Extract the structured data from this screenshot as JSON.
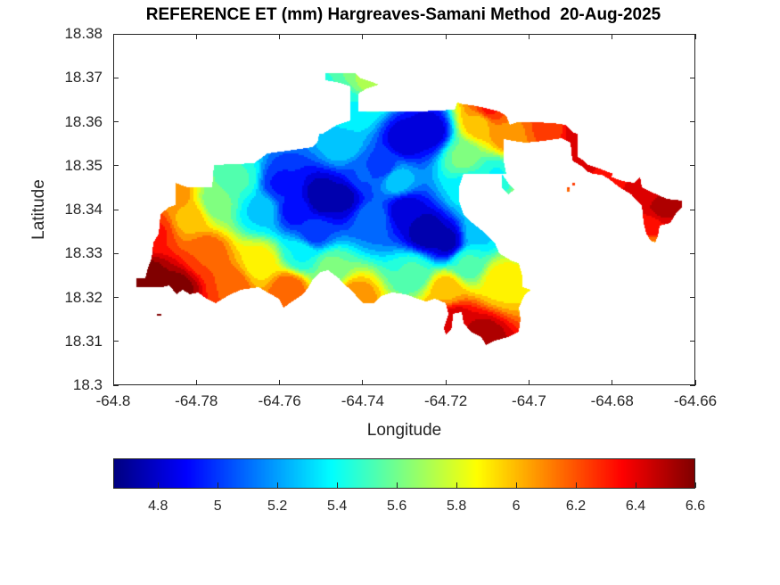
{
  "chart_data": {
    "type": "heatmap",
    "title": "REFERENCE ET (mm) Hargreaves-Samani Method  20-Aug-2025",
    "xlabel": "Longitude",
    "ylabel": "Latitude",
    "xlim": [
      -64.8,
      -64.66
    ],
    "ylim": [
      18.3,
      18.38
    ],
    "xticks": [
      -64.8,
      -64.78,
      -64.76,
      -64.74,
      -64.72,
      -64.7,
      -64.68,
      -64.66
    ],
    "xtick_labels": [
      "-64.8",
      "-64.78",
      "-64.76",
      "-64.74",
      "-64.72",
      "-64.7",
      "-64.68",
      "-64.66"
    ],
    "yticks": [
      18.3,
      18.31,
      18.32,
      18.33,
      18.34,
      18.35,
      18.36,
      18.37,
      18.38
    ],
    "ytick_labels": [
      "18.3",
      "18.31",
      "18.32",
      "18.33",
      "18.34",
      "18.35",
      "18.36",
      "18.37",
      "18.38"
    ],
    "colormap": "jet",
    "colorbar": {
      "orientation": "horizontal",
      "location": "below",
      "clim": [
        4.65,
        6.6
      ],
      "ticks": [
        4.8,
        5.0,
        5.2,
        5.4,
        5.6,
        5.8,
        6.0,
        6.2,
        6.4,
        6.6
      ],
      "tick_labels": [
        "4.8",
        "5",
        "5.2",
        "5.4",
        "5.6",
        "5.8",
        "6",
        "6.2",
        "6.4",
        "6.6"
      ]
    },
    "grid": false,
    "value_summary": {
      "min_approx": 4.7,
      "max_approx": 6.6,
      "low_zones": [
        {
          "lon": -64.749,
          "lat": 18.342,
          "value": 4.7
        },
        {
          "lon": -64.725,
          "lat": 18.335,
          "value": 4.7
        },
        {
          "lon": -64.726,
          "lat": 18.357,
          "value": 4.8
        }
      ],
      "high_zones": [
        {
          "lon": -64.788,
          "lat": 18.325,
          "value": 6.6
        },
        {
          "lon": -64.718,
          "lat": 18.313,
          "value": 6.5
        },
        {
          "lon": -64.67,
          "lat": 18.34,
          "value": 6.5
        },
        {
          "lon": -64.688,
          "lat": 18.359,
          "value": 6.5
        }
      ]
    },
    "field_points": [
      {
        "lon": -64.792,
        "lat": 18.325,
        "v": 6.6
      },
      {
        "lon": -64.785,
        "lat": 18.322,
        "v": 6.6
      },
      {
        "lon": -64.79,
        "lat": 18.335,
        "v": 6.3
      },
      {
        "lon": -64.782,
        "lat": 18.338,
        "v": 6.0
      },
      {
        "lon": -64.786,
        "lat": 18.344,
        "v": 6.1
      },
      {
        "lon": -64.778,
        "lat": 18.33,
        "v": 6.2
      },
      {
        "lon": -64.772,
        "lat": 18.323,
        "v": 6.2
      },
      {
        "lon": -64.775,
        "lat": 18.342,
        "v": 5.6
      },
      {
        "lon": -64.77,
        "lat": 18.347,
        "v": 5.5
      },
      {
        "lon": -64.765,
        "lat": 18.34,
        "v": 5.3
      },
      {
        "lon": -64.765,
        "lat": 18.328,
        "v": 5.9
      },
      {
        "lon": -64.758,
        "lat": 18.322,
        "v": 6.2
      },
      {
        "lon": -64.76,
        "lat": 18.346,
        "v": 4.95
      },
      {
        "lon": -64.756,
        "lat": 18.34,
        "v": 4.9
      },
      {
        "lon": -64.75,
        "lat": 18.343,
        "v": 4.7
      },
      {
        "lon": -64.745,
        "lat": 18.343,
        "v": 4.75
      },
      {
        "lon": -64.752,
        "lat": 18.335,
        "v": 5.0
      },
      {
        "lon": -64.755,
        "lat": 18.33,
        "v": 5.4
      },
      {
        "lon": -64.748,
        "lat": 18.327,
        "v": 5.6
      },
      {
        "lon": -64.742,
        "lat": 18.32,
        "v": 6.1
      },
      {
        "lon": -64.738,
        "lat": 18.338,
        "v": 5.1
      },
      {
        "lon": -64.74,
        "lat": 18.348,
        "v": 5.05
      },
      {
        "lon": -64.745,
        "lat": 18.355,
        "v": 5.3
      },
      {
        "lon": -64.742,
        "lat": 18.363,
        "v": 5.4
      },
      {
        "lon": -64.738,
        "lat": 18.369,
        "v": 5.7
      },
      {
        "lon": -64.73,
        "lat": 18.34,
        "v": 4.8
      },
      {
        "lon": -64.725,
        "lat": 18.335,
        "v": 4.7
      },
      {
        "lon": -64.72,
        "lat": 18.333,
        "v": 4.75
      },
      {
        "lon": -64.73,
        "lat": 18.356,
        "v": 4.8
      },
      {
        "lon": -64.724,
        "lat": 18.358,
        "v": 4.8
      },
      {
        "lon": -64.735,
        "lat": 18.35,
        "v": 5.0
      },
      {
        "lon": -64.732,
        "lat": 18.347,
        "v": 5.3
      },
      {
        "lon": -64.728,
        "lat": 18.326,
        "v": 5.5
      },
      {
        "lon": -64.72,
        "lat": 18.322,
        "v": 6.0
      },
      {
        "lon": -64.715,
        "lat": 18.328,
        "v": 5.5
      },
      {
        "lon": -64.712,
        "lat": 18.335,
        "v": 5.3
      },
      {
        "lon": -64.715,
        "lat": 18.345,
        "v": 5.35
      },
      {
        "lon": -64.716,
        "lat": 18.352,
        "v": 5.6
      },
      {
        "lon": -64.712,
        "lat": 18.36,
        "v": 6.0
      },
      {
        "lon": -64.71,
        "lat": 18.363,
        "v": 6.3
      },
      {
        "lon": -64.705,
        "lat": 18.357,
        "v": 6.1
      },
      {
        "lon": -64.708,
        "lat": 18.348,
        "v": 5.4
      },
      {
        "lon": -64.707,
        "lat": 18.324,
        "v": 5.9
      },
      {
        "lon": -64.718,
        "lat": 18.315,
        "v": 6.45
      },
      {
        "lon": -64.712,
        "lat": 18.311,
        "v": 6.55
      },
      {
        "lon": -64.72,
        "lat": 18.313,
        "v": 6.4
      },
      {
        "lon": -64.695,
        "lat": 18.359,
        "v": 6.25
      },
      {
        "lon": -64.688,
        "lat": 18.358,
        "v": 6.45
      },
      {
        "lon": -64.684,
        "lat": 18.355,
        "v": 6.5
      },
      {
        "lon": -64.68,
        "lat": 18.35,
        "v": 6.35
      },
      {
        "lon": -64.672,
        "lat": 18.345,
        "v": 6.4
      },
      {
        "lon": -64.668,
        "lat": 18.341,
        "v": 6.5
      },
      {
        "lon": -64.671,
        "lat": 18.336,
        "v": 6.35
      },
      {
        "lon": -64.671,
        "lat": 18.332,
        "v": 6.1
      },
      {
        "lon": -64.698,
        "lat": 18.345,
        "v": 6.2
      },
      {
        "lon": -64.71,
        "lat": 18.344,
        "v": 5.5
      }
    ]
  }
}
